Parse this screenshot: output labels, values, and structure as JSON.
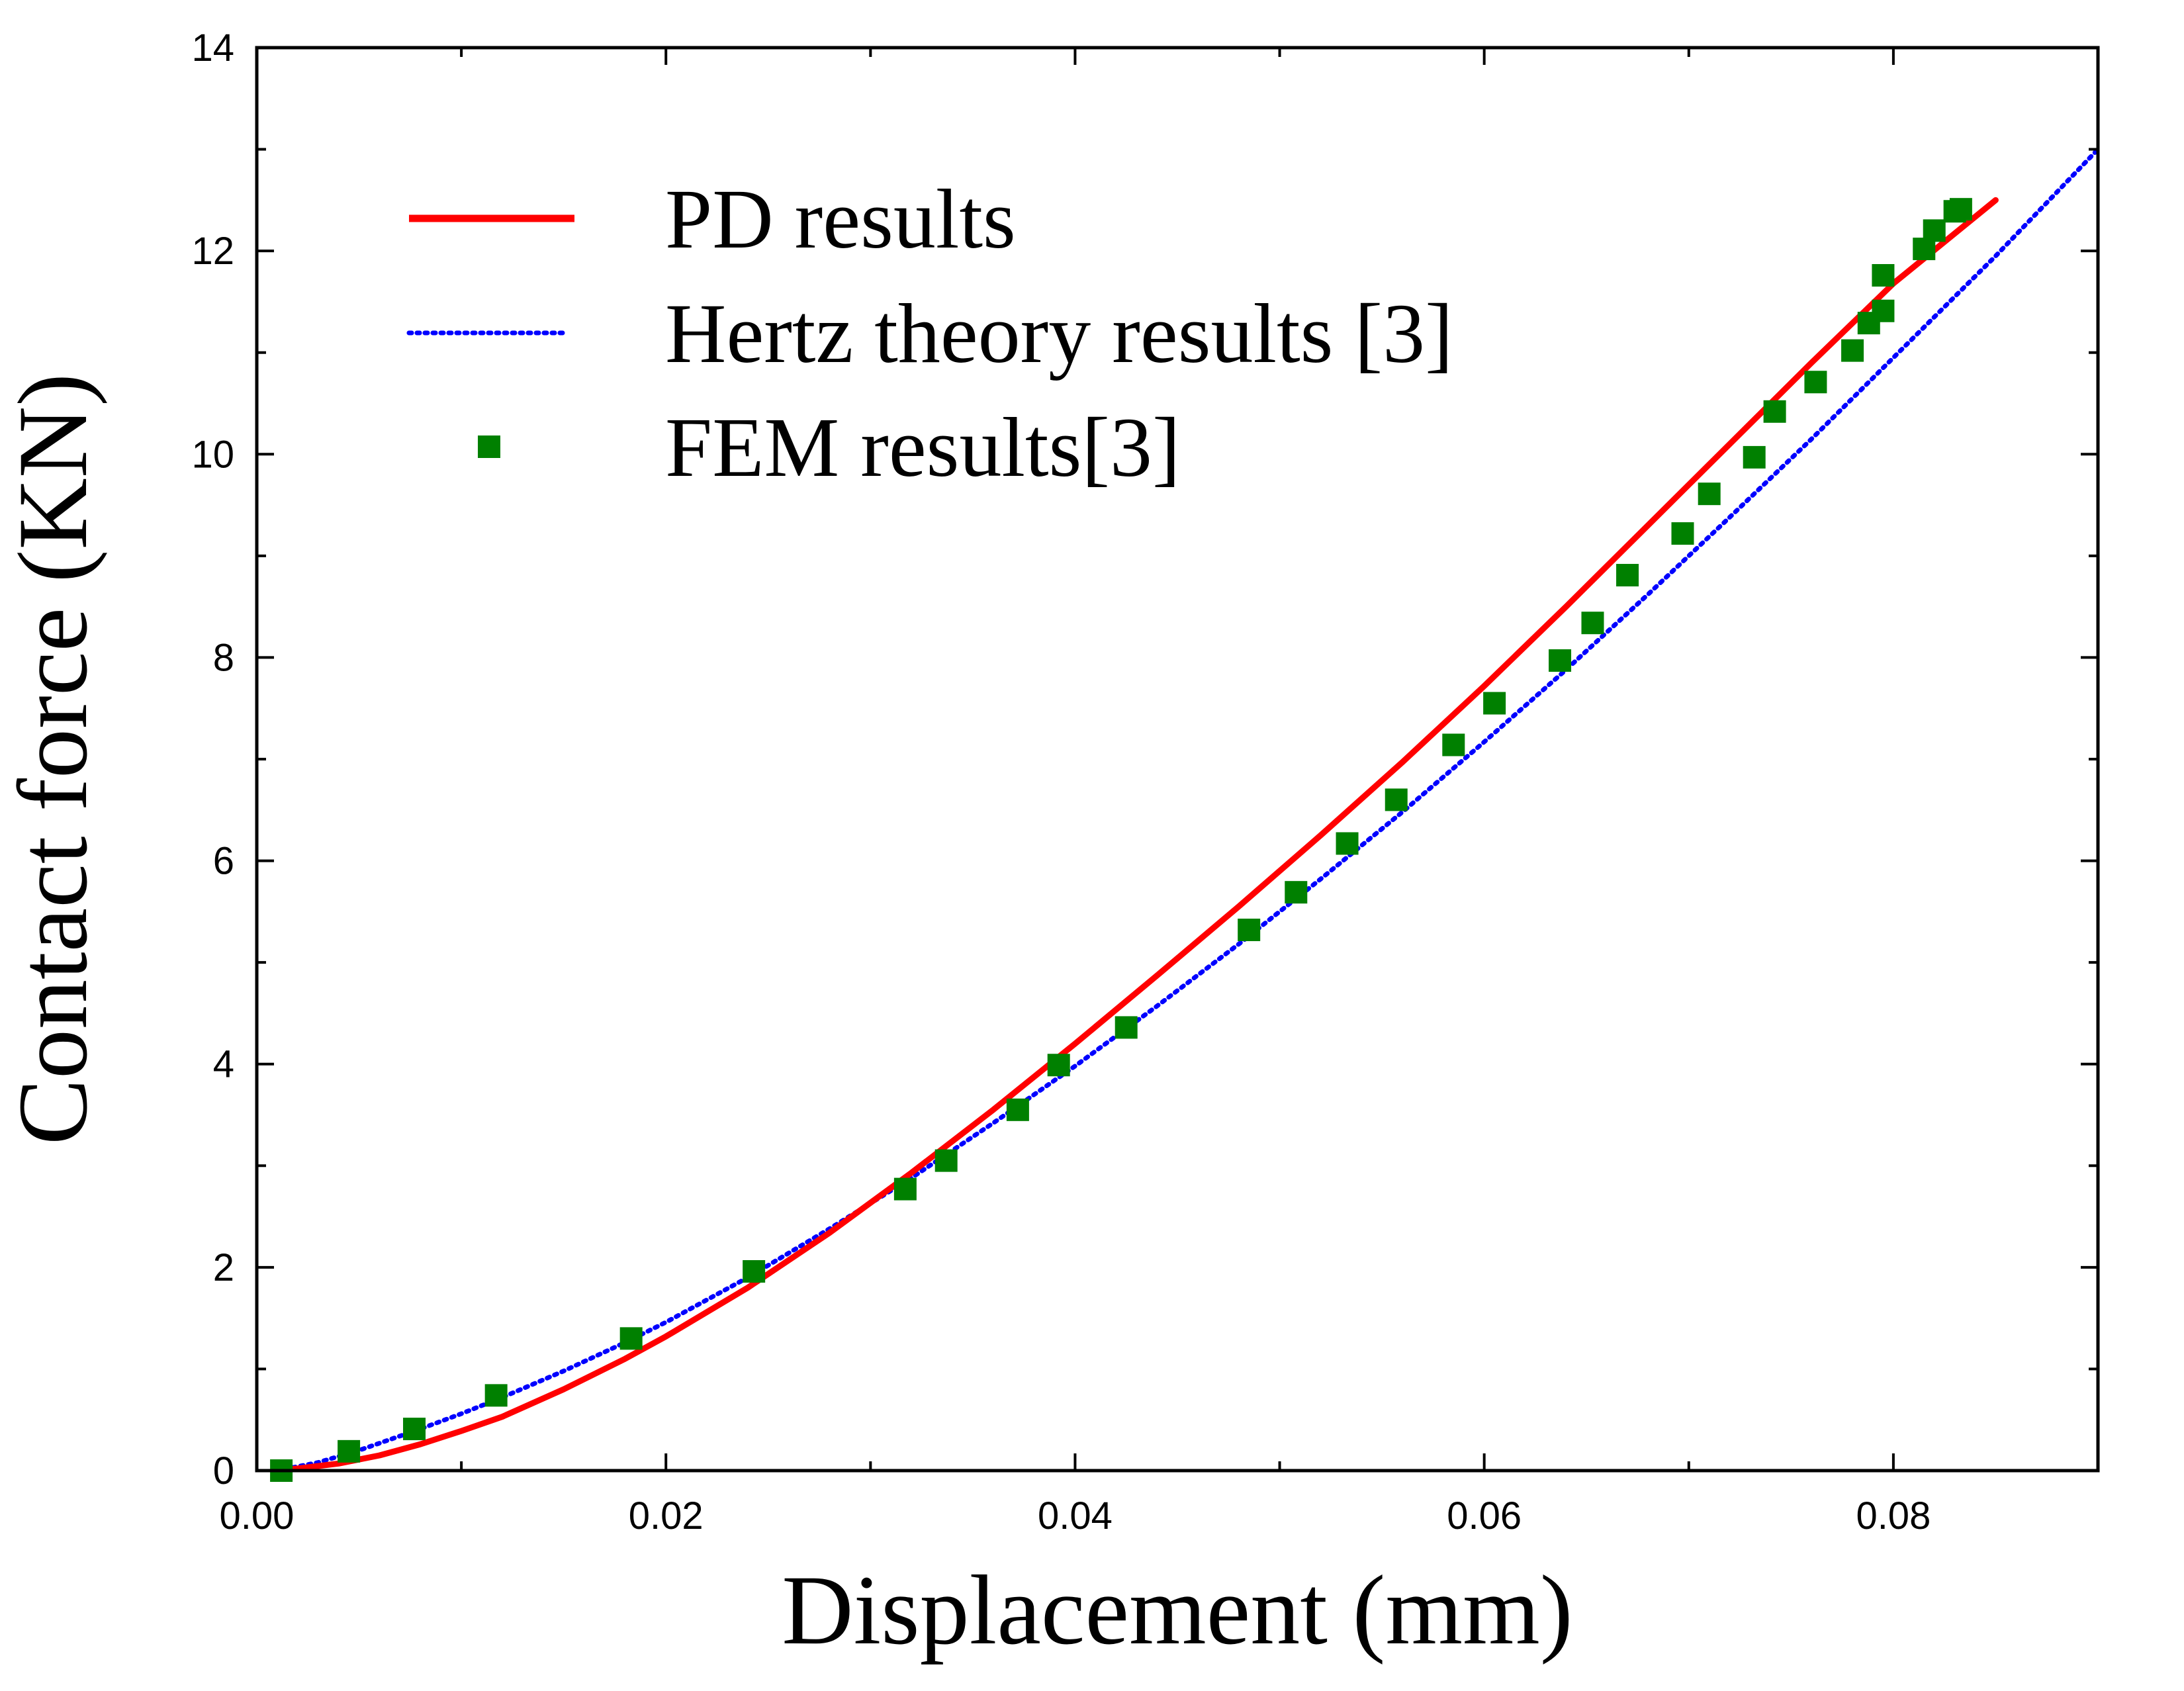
{
  "chart_data": {
    "type": "line",
    "xlabel": "Displacement (mm)",
    "ylabel": "Contact force (KN)",
    "xlim": [
      0.0,
      0.09
    ],
    "ylim": [
      0,
      14
    ],
    "x_ticks": [
      "0.00",
      "0.02",
      "0.04",
      "0.06",
      "0.08"
    ],
    "x_tick_values": [
      0.0,
      0.02,
      0.04,
      0.06,
      0.08
    ],
    "y_ticks": [
      "0",
      "2",
      "4",
      "6",
      "8",
      "10",
      "12",
      "14"
    ],
    "y_tick_values": [
      0,
      2,
      4,
      6,
      8,
      10,
      12,
      14
    ],
    "grid": false,
    "legend_position": "top-left",
    "series": [
      {
        "name": "PD results",
        "style": "solid-line",
        "color": "#ff0000",
        "x": [
          0.001,
          0.002,
          0.004,
          0.006,
          0.008,
          0.01,
          0.012,
          0.015,
          0.018,
          0.02,
          0.024,
          0.028,
          0.032,
          0.036,
          0.04,
          0.044,
          0.048,
          0.052,
          0.056,
          0.06,
          0.064,
          0.068,
          0.072,
          0.076,
          0.08,
          0.085
        ],
        "y": [
          0.0,
          0.02,
          0.07,
          0.15,
          0.26,
          0.39,
          0.53,
          0.8,
          1.1,
          1.32,
          1.8,
          2.34,
          2.93,
          3.55,
          4.2,
          4.87,
          5.55,
          6.25,
          6.97,
          7.72,
          8.5,
          9.3,
          10.1,
          10.9,
          11.68,
          12.5
        ]
      },
      {
        "name": "Hertz theory results [3]",
        "style": "dotted-line",
        "color": "#0000ff",
        "x": [
          0.001,
          0.003,
          0.005,
          0.008,
          0.01,
          0.012,
          0.015,
          0.018,
          0.02,
          0.024,
          0.028,
          0.032,
          0.036,
          0.04,
          0.044,
          0.048,
          0.052,
          0.056,
          0.06,
          0.064,
          0.068,
          0.072,
          0.076,
          0.08,
          0.085,
          0.09
        ],
        "y": [
          0.0,
          0.08,
          0.2,
          0.41,
          0.56,
          0.72,
          0.98,
          1.26,
          1.46,
          1.9,
          2.38,
          2.88,
          3.42,
          3.98,
          4.57,
          5.18,
          5.82,
          6.48,
          7.17,
          7.88,
          8.62,
          9.38,
          10.15,
          10.95,
          11.95,
          13.0
        ]
      },
      {
        "name": "FEM results[3]",
        "style": "square-markers",
        "color": "#008000",
        "x": [
          0.0012,
          0.0045,
          0.0077,
          0.0117,
          0.0183,
          0.0243,
          0.0317,
          0.0337,
          0.0372,
          0.0392,
          0.0425,
          0.0485,
          0.0508,
          0.0533,
          0.0557,
          0.0585,
          0.0605,
          0.0637,
          0.0653,
          0.067,
          0.0697,
          0.071,
          0.0732,
          0.0742,
          0.0762,
          0.078,
          0.0788,
          0.0795,
          0.0795,
          0.0815,
          0.082,
          0.083,
          0.0833
        ],
        "y": [
          0.0,
          0.19,
          0.41,
          0.74,
          1.3,
          1.96,
          2.77,
          3.05,
          3.55,
          3.99,
          4.36,
          5.32,
          5.69,
          6.17,
          6.6,
          7.14,
          7.55,
          7.97,
          8.34,
          8.81,
          9.22,
          9.61,
          9.97,
          10.42,
          10.71,
          11.02,
          11.29,
          11.41,
          11.76,
          12.02,
          12.2,
          12.39,
          12.41
        ]
      }
    ]
  },
  "colors": {
    "axis": "#000000",
    "background": "#ffffff"
  }
}
